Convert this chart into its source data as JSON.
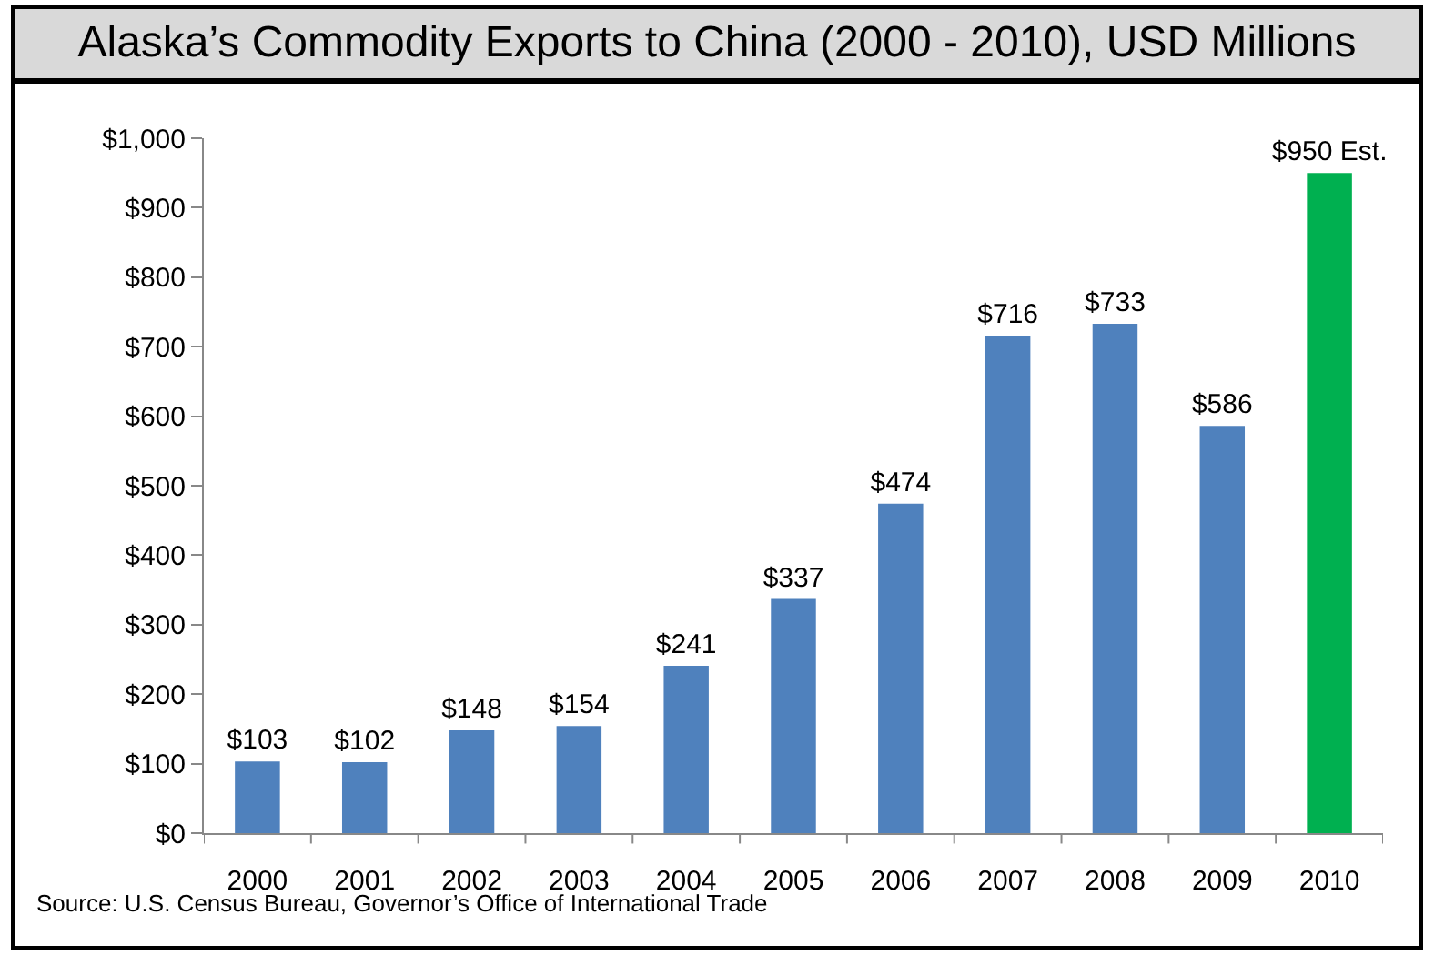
{
  "chart_data": {
    "type": "bar",
    "title": "Alaska’s Commodity Exports to China (2000 - 2010), USD Millions",
    "categories": [
      "2000",
      "2001",
      "2002",
      "2003",
      "2004",
      "2005",
      "2006",
      "2007",
      "2008",
      "2009",
      "2010"
    ],
    "values": [
      103,
      102,
      148,
      154,
      241,
      337,
      474,
      716,
      733,
      586,
      950
    ],
    "colors": [
      "#4f81bd",
      "#4f81bd",
      "#4f81bd",
      "#4f81bd",
      "#4f81bd",
      "#4f81bd",
      "#4f81bd",
      "#4f81bd",
      "#4f81bd",
      "#4f81bd",
      "#00b050"
    ],
    "value_labels": [
      "$103",
      "$102",
      "$148",
      "$154",
      "$241",
      "$337",
      "$474",
      "$716",
      "$733",
      "$586",
      "$950 Est."
    ],
    "ylim": [
      0,
      1000
    ],
    "yticks": [
      {
        "value": 0,
        "label": "$0"
      },
      {
        "value": 100,
        "label": "$100"
      },
      {
        "value": 200,
        "label": "$200"
      },
      {
        "value": 300,
        "label": "$300"
      },
      {
        "value": 400,
        "label": "$400"
      },
      {
        "value": 500,
        "label": "$500"
      },
      {
        "value": 600,
        "label": "$600"
      },
      {
        "value": 700,
        "label": "$700"
      },
      {
        "value": 800,
        "label": "$800"
      },
      {
        "value": 900,
        "label": "$900"
      },
      {
        "value": 1000,
        "label": "$1,000"
      }
    ],
    "grid": false,
    "annotations": [
      "Source: U.S. Census Bureau, Governor’s Office of International Trade"
    ]
  }
}
